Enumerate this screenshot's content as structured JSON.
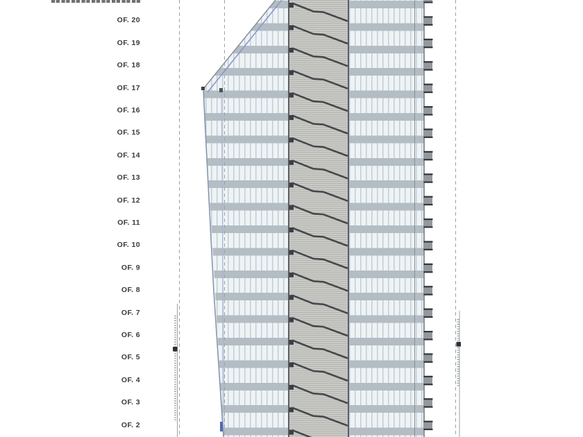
{
  "drawing": {
    "type": "building-section-elevation",
    "floor_labels": [
      "OF. 20",
      "OF. 19",
      "OF. 18",
      "OF. 17",
      "OF. 16",
      "OF. 15",
      "OF. 14",
      "OF. 13",
      "OF. 12",
      "OF. 11",
      "OF. 10",
      "OF. 9",
      "OF. 8",
      "OF. 7",
      "OF. 6",
      "OF. 5",
      "OF. 4",
      "OF. 3",
      "OF. 2"
    ],
    "stair_floor_count": 20,
    "has_cropped_text_at_top": true
  },
  "colors": {
    "background": "#ffffff",
    "label_text": "#3a3a3a",
    "floor_band": "#b3bdc3",
    "glass": "#eef3f6",
    "mullion": "#c3cdd3",
    "core_fill": "#c9c9c6",
    "core_hatch": "#b4b4b1",
    "core_wall": "#5a5e62",
    "stair_line": "#45484b",
    "door_marker": "#3c4045",
    "roof_edge": "#8d9298",
    "blue_skin_line": "#8d97cc",
    "lean_edge": "#8795ab",
    "grid_line": "#9ba1a7",
    "facade_unit_body": "#94999d",
    "facade_unit_edge": "#33373a",
    "dimension_line": "#9aa0a5",
    "dimension_marks": "#7e848a",
    "dimension_node": "#2c3034",
    "bottom_marker": "#5468b0"
  }
}
